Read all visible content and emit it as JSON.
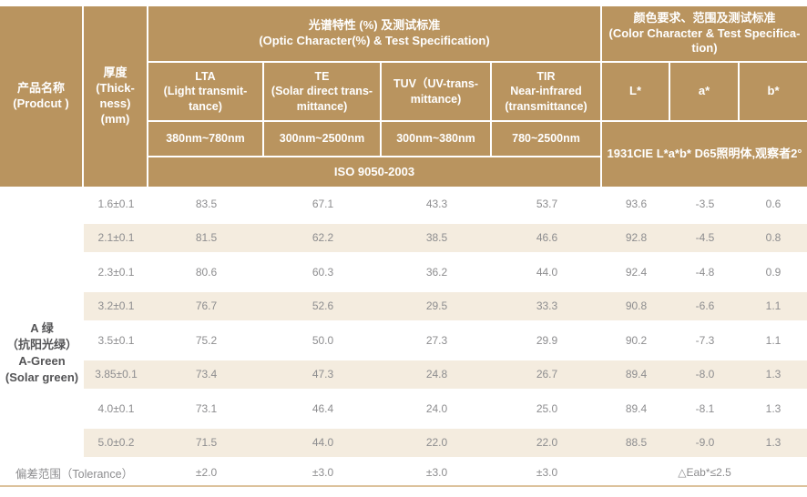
{
  "colors": {
    "header_bg": "#b9945f",
    "header_text": "#ffffff",
    "stripe_bg": "#f4ecdf",
    "body_text": "#8d8d8f",
    "product_text": "#545456",
    "bottom_rule": "#dcc29c"
  },
  "table": {
    "header": {
      "product": "产品名称\n(Prodcut )",
      "thickness": "厚度\n(Thick-\nness)\n(mm)",
      "optic_span": "光谱特性 (%) 及测试标准\n(Optic Character(%) & Test Specification)",
      "color_span": "颜色要求、范围及测试标准\n(Color Character & Test Specifica-\ntion)",
      "columns": [
        "LTA\n(Light transmit-\ntance)",
        "TE\n(Solar direct trans-\nmittance)",
        "TUV（UV-trans-\nmittance)",
        "TIR\nNear-infrared\n(transmittance)",
        "L*",
        "a*",
        "b*"
      ],
      "wavelengths": [
        "380nm~780nm",
        "300nm~2500nm",
        "300nm~380nm",
        "780~2500nm"
      ],
      "optic_standard": "ISO 9050-2003",
      "color_standard": "1931CIE L*a*b*  D65照明体,观察者2°"
    },
    "product_name": "A 绿\n（抗阳光绿）\nA-Green\n(Solar green)",
    "rows": [
      {
        "thickness": "1.6±0.1",
        "values": [
          "83.5",
          "67.1",
          "43.3",
          "53.7",
          "93.6",
          "-3.5",
          "0.6"
        ]
      },
      {
        "thickness": "2.1±0.1",
        "values": [
          "81.5",
          "62.2",
          "38.5",
          "46.6",
          "92.8",
          "-4.5",
          "0.8"
        ]
      },
      {
        "thickness": "2.3±0.1",
        "values": [
          "80.6",
          "60.3",
          "36.2",
          "44.0",
          "92.4",
          "-4.8",
          "0.9"
        ]
      },
      {
        "thickness": "3.2±0.1",
        "values": [
          "76.7",
          "52.6",
          "29.5",
          "33.3",
          "90.8",
          "-6.6",
          "1.1"
        ]
      },
      {
        "thickness": "3.5±0.1",
        "values": [
          "75.2",
          "50.0",
          "27.3",
          "29.9",
          "90.2",
          "-7.3",
          "1.1"
        ]
      },
      {
        "thickness": "3.85±0.1",
        "values": [
          "73.4",
          "47.3",
          "24.8",
          "26.7",
          "89.4",
          "-8.0",
          "1.3"
        ]
      },
      {
        "thickness": "4.0±0.1",
        "values": [
          "73.1",
          "46.4",
          "24.0",
          "25.0",
          "89.4",
          "-8.1",
          "1.3"
        ]
      },
      {
        "thickness": "5.0±0.2",
        "values": [
          "71.5",
          "44.0",
          "22.0",
          "22.0",
          "88.5",
          "-9.0",
          "1.3"
        ]
      }
    ],
    "tolerance": {
      "label": "偏差范围（Tolerance）",
      "values": [
        "±2.0",
        "±3.0",
        "±3.0",
        "±3.0"
      ],
      "color": "△Eab*≤2.5"
    }
  }
}
